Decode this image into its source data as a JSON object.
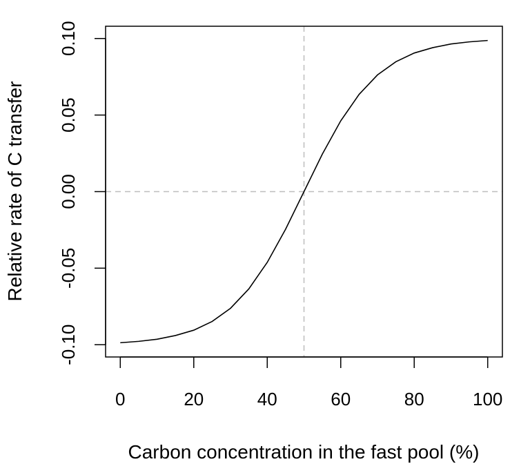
{
  "chart_data": {
    "type": "line",
    "title": "",
    "xlabel": "Carbon concentration in the fast pool (%)",
    "ylabel": "Relative rate of C transfer",
    "xlim": [
      -4,
      104
    ],
    "ylim": [
      -0.108,
      0.108
    ],
    "x_ticks": [
      0,
      20,
      40,
      60,
      80,
      100
    ],
    "y_ticks": [
      -0.1,
      -0.05,
      0.0,
      0.05,
      0.1
    ],
    "x_tick_labels": [
      "0",
      "20",
      "40",
      "60",
      "80",
      "100"
    ],
    "y_tick_labels": [
      "-0.10",
      "-0.05",
      "0.00",
      "0.05",
      "0.10"
    ],
    "grid": false,
    "legend": "none",
    "series": [
      {
        "x": [
          0,
          5,
          10,
          15,
          20,
          25,
          30,
          35,
          40,
          45,
          50,
          55,
          60,
          65,
          70,
          75,
          80,
          85,
          90,
          95,
          100
        ],
        "y": [
          -0.0987,
          -0.0978,
          -0.0964,
          -0.094,
          -0.0905,
          -0.0848,
          -0.0762,
          -0.0635,
          -0.0462,
          -0.0245,
          0.0,
          0.0245,
          0.0462,
          0.0635,
          0.0762,
          0.0848,
          0.0905,
          0.094,
          0.0964,
          0.0978,
          0.0987
        ],
        "color": "#000000"
      }
    ],
    "reference_lines": [
      {
        "orientation": "vertical",
        "value": 50,
        "color": "#bdbdbd",
        "style": "dashed"
      },
      {
        "orientation": "horizontal",
        "value": 0,
        "color": "#bdbdbd",
        "style": "dashed"
      }
    ]
  }
}
